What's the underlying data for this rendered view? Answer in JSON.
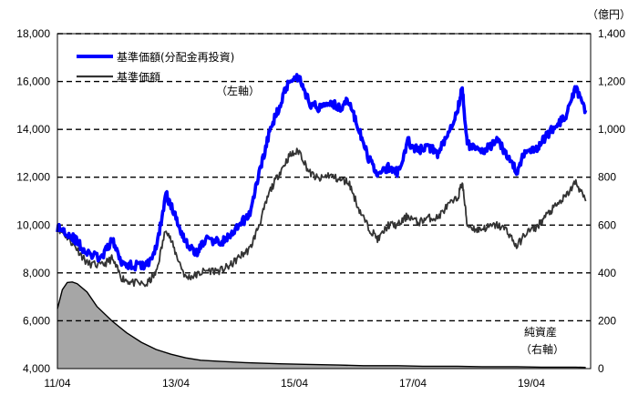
{
  "chart_data": {
    "type": "line",
    "unit_right": "（億円）",
    "annotations": {
      "left_axis": "（左軸）",
      "net_assets": "純資産",
      "right_axis": "（右軸）"
    },
    "legend": [
      "基準価額(分配金再投資)",
      "基準価額"
    ],
    "colors": {
      "reinvested": "#0000ff",
      "nav": "#333333",
      "assets_fill": "#a6a6a6",
      "assets_line": "#000000"
    },
    "grid": true,
    "legend_position": "top-left",
    "x": {
      "ticks": [
        "11/04",
        "13/04",
        "15/04",
        "17/04",
        "19/04"
      ],
      "tick_dates": [
        "2011-04",
        "2013-04",
        "2015-04",
        "2017-04",
        "2019-04"
      ],
      "range": [
        "2011-04",
        "2020-04"
      ]
    },
    "y_left": {
      "ylim": [
        4000,
        18000
      ],
      "ticks": [
        "4,000",
        "6,000",
        "8,000",
        "10,000",
        "12,000",
        "14,000",
        "16,000",
        "18,000"
      ]
    },
    "y_right": {
      "ylim": [
        0,
        1400
      ],
      "ticks": [
        "0",
        "200",
        "400",
        "600",
        "800",
        "1,000",
        "1,200",
        "1,400"
      ]
    },
    "series": [
      {
        "name": "基準価額(分配金再投資)",
        "axis": "left",
        "x": [
          "2011-04",
          "2011-06",
          "2011-08",
          "2011-10",
          "2012-01",
          "2012-03",
          "2012-05",
          "2012-07",
          "2012-10",
          "2012-12",
          "2013-02",
          "2013-04",
          "2013-06",
          "2013-08",
          "2013-10",
          "2014-01",
          "2014-03",
          "2014-05",
          "2014-07",
          "2014-09",
          "2014-11",
          "2015-01",
          "2015-03",
          "2015-05",
          "2015-07",
          "2015-09",
          "2015-11",
          "2016-01",
          "2016-03",
          "2016-05",
          "2016-07",
          "2016-09",
          "2016-11",
          "2017-01",
          "2017-03",
          "2017-05",
          "2017-07",
          "2017-09",
          "2017-11",
          "2018-01",
          "2018-02",
          "2018-03",
          "2018-05",
          "2018-07",
          "2018-09",
          "2018-11",
          "2019-01",
          "2019-03",
          "2019-05",
          "2019-07",
          "2019-09",
          "2019-11",
          "2020-01",
          "2020-03"
        ],
        "values": [
          9900,
          9700,
          9300,
          8800,
          8600,
          9400,
          8500,
          8300,
          8300,
          9000,
          11300,
          10300,
          9300,
          8800,
          9400,
          9300,
          9500,
          10000,
          10500,
          12300,
          13900,
          15000,
          16100,
          16200,
          15100,
          14900,
          15200,
          14900,
          15200,
          14000,
          12800,
          12100,
          12400,
          12200,
          13500,
          13100,
          13300,
          13000,
          13800,
          14800,
          15700,
          13400,
          13100,
          13200,
          13500,
          13000,
          12200,
          13200,
          13200,
          13700,
          14200,
          14500,
          15700,
          14800
        ]
      },
      {
        "name": "基準価額",
        "axis": "left",
        "x": [
          "2011-04",
          "2011-06",
          "2011-08",
          "2011-10",
          "2012-01",
          "2012-03",
          "2012-05",
          "2012-07",
          "2012-10",
          "2012-12",
          "2013-02",
          "2013-04",
          "2013-06",
          "2013-08",
          "2013-10",
          "2014-01",
          "2014-03",
          "2014-05",
          "2014-07",
          "2014-09",
          "2014-11",
          "2015-01",
          "2015-03",
          "2015-05",
          "2015-07",
          "2015-09",
          "2015-11",
          "2016-01",
          "2016-03",
          "2016-05",
          "2016-07",
          "2016-09",
          "2016-11",
          "2017-01",
          "2017-03",
          "2017-05",
          "2017-07",
          "2017-09",
          "2017-11",
          "2018-01",
          "2018-02",
          "2018-03",
          "2018-05",
          "2018-07",
          "2018-09",
          "2018-11",
          "2019-01",
          "2019-03",
          "2019-05",
          "2019-07",
          "2019-09",
          "2019-11",
          "2020-01",
          "2020-03"
        ],
        "values": [
          9900,
          9500,
          9000,
          8400,
          8300,
          8600,
          7800,
          7600,
          7500,
          8000,
          9900,
          8800,
          7800,
          7900,
          8100,
          8100,
          8300,
          8700,
          9000,
          10100,
          11400,
          12200,
          12900,
          13100,
          12200,
          11900,
          12100,
          11900,
          11800,
          10700,
          9900,
          9400,
          10000,
          10000,
          10400,
          10100,
          10300,
          10300,
          10800,
          11100,
          11800,
          10000,
          9800,
          9900,
          10000,
          9800,
          9100,
          9700,
          9900,
          10400,
          10800,
          11200,
          11800,
          11000
        ]
      },
      {
        "name": "純資産",
        "axis": "right",
        "x": [
          "2011-04",
          "2011-05",
          "2011-06",
          "2011-07",
          "2011-08",
          "2011-10",
          "2011-12",
          "2012-03",
          "2012-06",
          "2012-09",
          "2012-12",
          "2013-03",
          "2013-06",
          "2013-09",
          "2014-01",
          "2014-06",
          "2015-01",
          "2015-06",
          "2016-01",
          "2016-06",
          "2017-01",
          "2017-06",
          "2018-01",
          "2018-06",
          "2019-01",
          "2019-06",
          "2020-01",
          "2020-03"
        ],
        "values": [
          250,
          330,
          360,
          362,
          355,
          320,
          260,
          200,
          150,
          110,
          80,
          60,
          45,
          35,
          30,
          25,
          20,
          18,
          15,
          12,
          12,
          10,
          10,
          8,
          8,
          6,
          6,
          5
        ]
      }
    ]
  }
}
